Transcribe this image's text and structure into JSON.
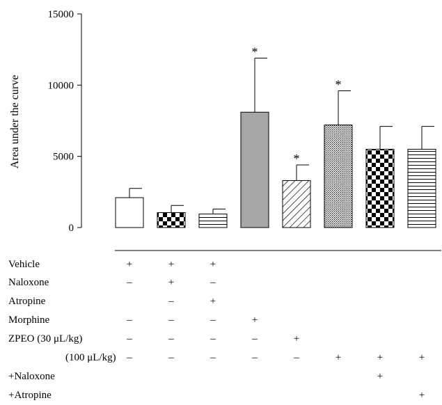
{
  "chart_data": {
    "type": "bar",
    "ylabel": "Area under the curve",
    "ylim": [
      0,
      15000
    ],
    "yticks": [
      0,
      5000,
      10000,
      15000
    ],
    "ytick_labels": [
      "0",
      "5000",
      "10000",
      "15000"
    ],
    "categories": [
      "Vehicle",
      "Naloxone",
      "Atropine",
      "Morphine",
      "ZPEO 30",
      "ZPEO 100",
      "ZPEO 100 + Naloxone",
      "ZPEO 100 + Atropine"
    ],
    "values": [
      2100,
      1050,
      950,
      8100,
      3300,
      7200,
      5500,
      5500
    ],
    "errors": [
      650,
      500,
      350,
      3800,
      1100,
      2400,
      1600,
      1600
    ],
    "significance": [
      "",
      "",
      "",
      "*",
      "*",
      "*",
      "",
      ""
    ],
    "patterns": [
      "white",
      "large-checker",
      "horizontal-stripes",
      "solid-gray",
      "diagonal-hatch",
      "fine-dots",
      "large-checker",
      "horizontal-stripes"
    ],
    "colors": {
      "gray_fill": "#a6a6a6",
      "ink": "#000000"
    }
  },
  "treatment_table": {
    "rows": [
      {
        "label": "Vehicle",
        "marks": [
          "+",
          "+",
          "+",
          "",
          "",
          "",
          "",
          ""
        ]
      },
      {
        "label": "Naloxone",
        "marks": [
          "–",
          "+",
          "–",
          "",
          "",
          "",
          "",
          ""
        ]
      },
      {
        "label": "Atropine",
        "marks": [
          "",
          "–",
          "+",
          "",
          "",
          "",
          "",
          ""
        ]
      },
      {
        "label": "Morphine",
        "marks": [
          "–",
          "–",
          "–",
          "+",
          "",
          "",
          "",
          ""
        ]
      },
      {
        "label": "ZPEO (30 μL/kg)",
        "marks": [
          "–",
          "–",
          "–",
          "–",
          "+",
          "",
          "",
          ""
        ]
      },
      {
        "label": "(100 μL/kg)",
        "marks": [
          "–",
          "–",
          "–",
          "–",
          "–",
          "+",
          "+",
          "+"
        ]
      },
      {
        "label": "+Naloxone",
        "marks": [
          "",
          "",
          "",
          "",
          "",
          "",
          "+",
          ""
        ]
      },
      {
        "label": "+Atropine",
        "marks": [
          "",
          "",
          "",
          "",
          "",
          "",
          "",
          "+"
        ]
      }
    ]
  }
}
